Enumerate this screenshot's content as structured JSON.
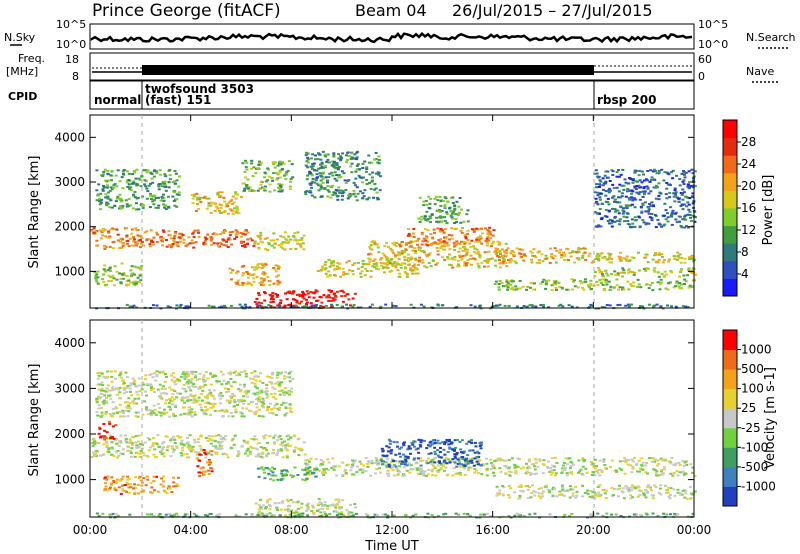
{
  "header": {
    "station": "Prince George (fitACF)",
    "beam": "Beam 04",
    "date_range": "26/Jul/2015 – 27/Jul/2015"
  },
  "status_panels": {
    "nsky_label": "N.Sky",
    "nsearch_label": "N.Search",
    "noise_left_ticks": [
      "10^5",
      "10^0"
    ],
    "noise_right_ticks": [
      "10^5",
      "10^0"
    ],
    "freq_label_1": "Freq.",
    "freq_label_2": "[MHz]",
    "freq_ticks": [
      "18",
      "8"
    ],
    "nave_label": "Nave",
    "nave_ticks": [
      "60",
      "0"
    ],
    "cpid_label": "CPID",
    "cpid_segments": [
      {
        "line1": "normal",
        "line2": "",
        "start_hour": 0
      },
      {
        "line1": "twofsound 3503",
        "line2": "(fast) 151",
        "start_hour": 2
      },
      {
        "line1": "rbsp 200",
        "line2": "",
        "start_hour": 20
      }
    ]
  },
  "chart_data": [
    {
      "type": "heatmap",
      "name": "power",
      "ylabel": "Slant Range [km]",
      "xlabel": "",
      "x_ticks": [
        "00:00",
        "04:00",
        "08:00",
        "12:00",
        "16:00",
        "20:00",
        "00:00"
      ],
      "y_ticks": [
        1000,
        2000,
        3000,
        4000
      ],
      "xlim_hours": [
        0,
        24
      ],
      "ylim_km": [
        180,
        4500
      ],
      "colorbar": {
        "label": "Power [dB]",
        "ticks": [
          "4",
          "8",
          "12",
          "16",
          "20",
          "24",
          "28"
        ],
        "colors": [
          "#1a1aff",
          "#3050c0",
          "#2f7a7a",
          "#3f9f40",
          "#7fcc2a",
          "#d8c81a",
          "#f3a21a",
          "#f06a1a",
          "#e62a10",
          "#ff0000"
        ]
      },
      "bands": [
        {
          "x": [
            0,
            1.8
          ],
          "y": [
            1500,
            2000
          ],
          "level": 0.7
        },
        {
          "x": [
            1.8,
            6.5
          ],
          "y": [
            1550,
            1950
          ],
          "level": 0.75
        },
        {
          "x": [
            6.5,
            8.5
          ],
          "y": [
            1500,
            1900
          ],
          "level": 0.55
        },
        {
          "x": [
            0.2,
            3.5
          ],
          "y": [
            2400,
            3300
          ],
          "level": 0.35
        },
        {
          "x": [
            4,
            6
          ],
          "y": [
            2300,
            2800
          ],
          "level": 0.6
        },
        {
          "x": [
            6,
            8
          ],
          "y": [
            2800,
            3500
          ],
          "level": 0.4
        },
        {
          "x": [
            0,
            2
          ],
          "y": [
            700,
            1200
          ],
          "level": 0.45
        },
        {
          "x": [
            5.5,
            7.5
          ],
          "y": [
            700,
            1200
          ],
          "level": 0.65
        },
        {
          "x": [
            6.5,
            10.5
          ],
          "y": [
            200,
            600
          ],
          "level": 0.95
        },
        {
          "x": [
            9,
            13
          ],
          "y": [
            900,
            1300
          ],
          "level": 0.55
        },
        {
          "x": [
            11,
            16.5
          ],
          "y": [
            1100,
            1700
          ],
          "level": 0.6
        },
        {
          "x": [
            12.5,
            16
          ],
          "y": [
            1600,
            2000
          ],
          "level": 0.7
        },
        {
          "x": [
            16,
            20
          ],
          "y": [
            1200,
            1550
          ],
          "level": 0.6
        },
        {
          "x": [
            20,
            24
          ],
          "y": [
            1200,
            1450
          ],
          "level": 0.55
        },
        {
          "x": [
            20,
            24
          ],
          "y": [
            900,
            1100
          ],
          "level": 0.5
        },
        {
          "x": [
            16,
            24
          ],
          "y": [
            600,
            850
          ],
          "level": 0.45
        },
        {
          "x": [
            0,
            24
          ],
          "y": [
            190,
            280
          ],
          "level": 0.25
        },
        {
          "x": [
            8.5,
            11.5
          ],
          "y": [
            2600,
            3700
          ],
          "level": 0.3
        },
        {
          "x": [
            13,
            15
          ],
          "y": [
            2100,
            2700
          ],
          "level": 0.35
        },
        {
          "x": [
            20,
            24
          ],
          "y": [
            2000,
            3300
          ],
          "level": 0.2
        }
      ]
    },
    {
      "type": "heatmap",
      "name": "velocity",
      "ylabel": "Slant Range [km]",
      "xlabel": "Time UT",
      "x_ticks": [
        "00:00",
        "04:00",
        "08:00",
        "12:00",
        "16:00",
        "20:00",
        "00:00"
      ],
      "y_ticks": [
        1000,
        2000,
        3000,
        4000
      ],
      "xlim_hours": [
        0,
        24
      ],
      "ylim_km": [
        180,
        4500
      ],
      "colorbar": {
        "label": "Velocity [m s-1]",
        "ticks": [
          "1000",
          "500",
          "100",
          "25",
          "-25",
          "-100",
          "-500",
          "-1000"
        ],
        "colors": [
          "#2040c0",
          "#3f80c0",
          "#3f9f60",
          "#6fd040",
          "#c8c8c8",
          "#e8d030",
          "#f3a21a",
          "#f06a1a",
          "#ff0000"
        ]
      },
      "bands": [
        {
          "x": [
            0,
            8.5
          ],
          "y": [
            1500,
            2000
          ],
          "level": 0.5
        },
        {
          "x": [
            8.5,
            24
          ],
          "y": [
            1100,
            1500
          ],
          "level": 0.5
        },
        {
          "x": [
            0.2,
            8
          ],
          "y": [
            2400,
            3400
          ],
          "level": 0.5
        },
        {
          "x": [
            11.5,
            15.5
          ],
          "y": [
            1300,
            1900
          ],
          "level": 0.1
        },
        {
          "x": [
            0.3,
            1
          ],
          "y": [
            1900,
            2300
          ],
          "level": 0.95
        },
        {
          "x": [
            4.2,
            4.8
          ],
          "y": [
            1100,
            1700
          ],
          "level": 0.85
        },
        {
          "x": [
            0.5,
            3.5
          ],
          "y": [
            700,
            1100
          ],
          "level": 0.75
        },
        {
          "x": [
            6.5,
            9
          ],
          "y": [
            1000,
            1300
          ],
          "level": 0.3
        },
        {
          "x": [
            6.5,
            10.5
          ],
          "y": [
            200,
            600
          ],
          "level": 0.5
        },
        {
          "x": [
            16,
            24
          ],
          "y": [
            600,
            900
          ],
          "level": 0.5
        },
        {
          "x": [
            0,
            24
          ],
          "y": [
            190,
            280
          ],
          "level": 0.35
        }
      ]
    }
  ]
}
